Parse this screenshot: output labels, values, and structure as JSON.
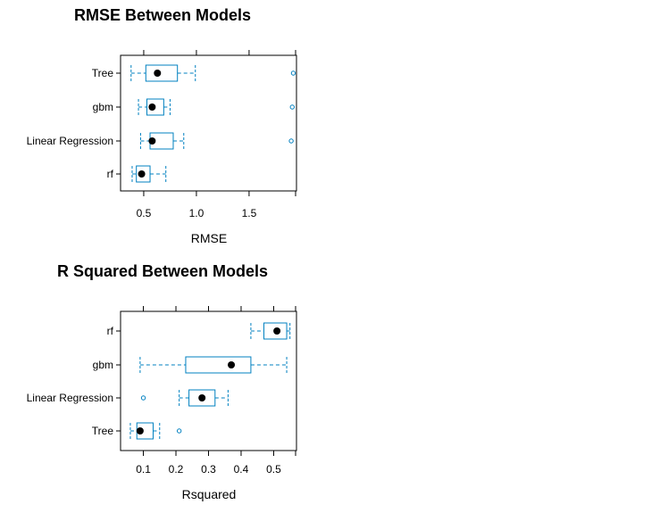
{
  "accent_color": "#0080c0",
  "chart_data": [
    {
      "type": "boxplot",
      "title": "RMSE Between Models",
      "xlabel": "RMSE",
      "ylabel": "",
      "xlim": [
        0.28,
        1.95
      ],
      "xticks": [
        0.5,
        1.0,
        1.5
      ],
      "xtick_labels": [
        "0.5",
        "1.0",
        "1.5"
      ],
      "categories": [
        "Tree",
        "gbm",
        "Linear Regression",
        "rf"
      ],
      "boxes": [
        {
          "name": "Tree",
          "whisker_low": 0.38,
          "q1": 0.52,
          "median": 0.63,
          "q3": 0.82,
          "whisker_high": 0.99,
          "outliers": [
            1.92
          ]
        },
        {
          "name": "gbm",
          "whisker_low": 0.45,
          "q1": 0.53,
          "median": 0.58,
          "q3": 0.69,
          "whisker_high": 0.75,
          "outliers": [
            1.91
          ]
        },
        {
          "name": "Linear Regression",
          "whisker_low": 0.47,
          "q1": 0.56,
          "median": 0.58,
          "q3": 0.78,
          "whisker_high": 0.88,
          "outliers": [
            1.9
          ]
        },
        {
          "name": "rf",
          "whisker_low": 0.39,
          "q1": 0.43,
          "median": 0.48,
          "q3": 0.56,
          "whisker_high": 0.71,
          "outliers": []
        }
      ]
    },
    {
      "type": "boxplot",
      "title": "R Squared Between Models",
      "xlabel": "Rsquared",
      "ylabel": "",
      "xlim": [
        0.03,
        0.57
      ],
      "xticks": [
        0.1,
        0.2,
        0.3,
        0.4,
        0.5
      ],
      "xtick_labels": [
        "0.1",
        "0.2",
        "0.3",
        "0.4",
        "0.5"
      ],
      "categories": [
        "rf",
        "gbm",
        "Linear Regression",
        "Tree"
      ],
      "boxes": [
        {
          "name": "rf",
          "whisker_low": 0.43,
          "q1": 0.47,
          "median": 0.51,
          "q3": 0.54,
          "whisker_high": 0.55,
          "outliers": []
        },
        {
          "name": "gbm",
          "whisker_low": 0.09,
          "q1": 0.23,
          "median": 0.37,
          "q3": 0.43,
          "whisker_high": 0.54,
          "outliers": []
        },
        {
          "name": "Linear Regression",
          "whisker_low": 0.21,
          "q1": 0.24,
          "median": 0.28,
          "q3": 0.32,
          "whisker_high": 0.36,
          "outliers": [
            0.1
          ]
        },
        {
          "name": "Tree",
          "whisker_low": 0.06,
          "q1": 0.08,
          "median": 0.09,
          "q3": 0.13,
          "whisker_high": 0.15,
          "outliers": [
            0.21
          ]
        }
      ]
    }
  ]
}
